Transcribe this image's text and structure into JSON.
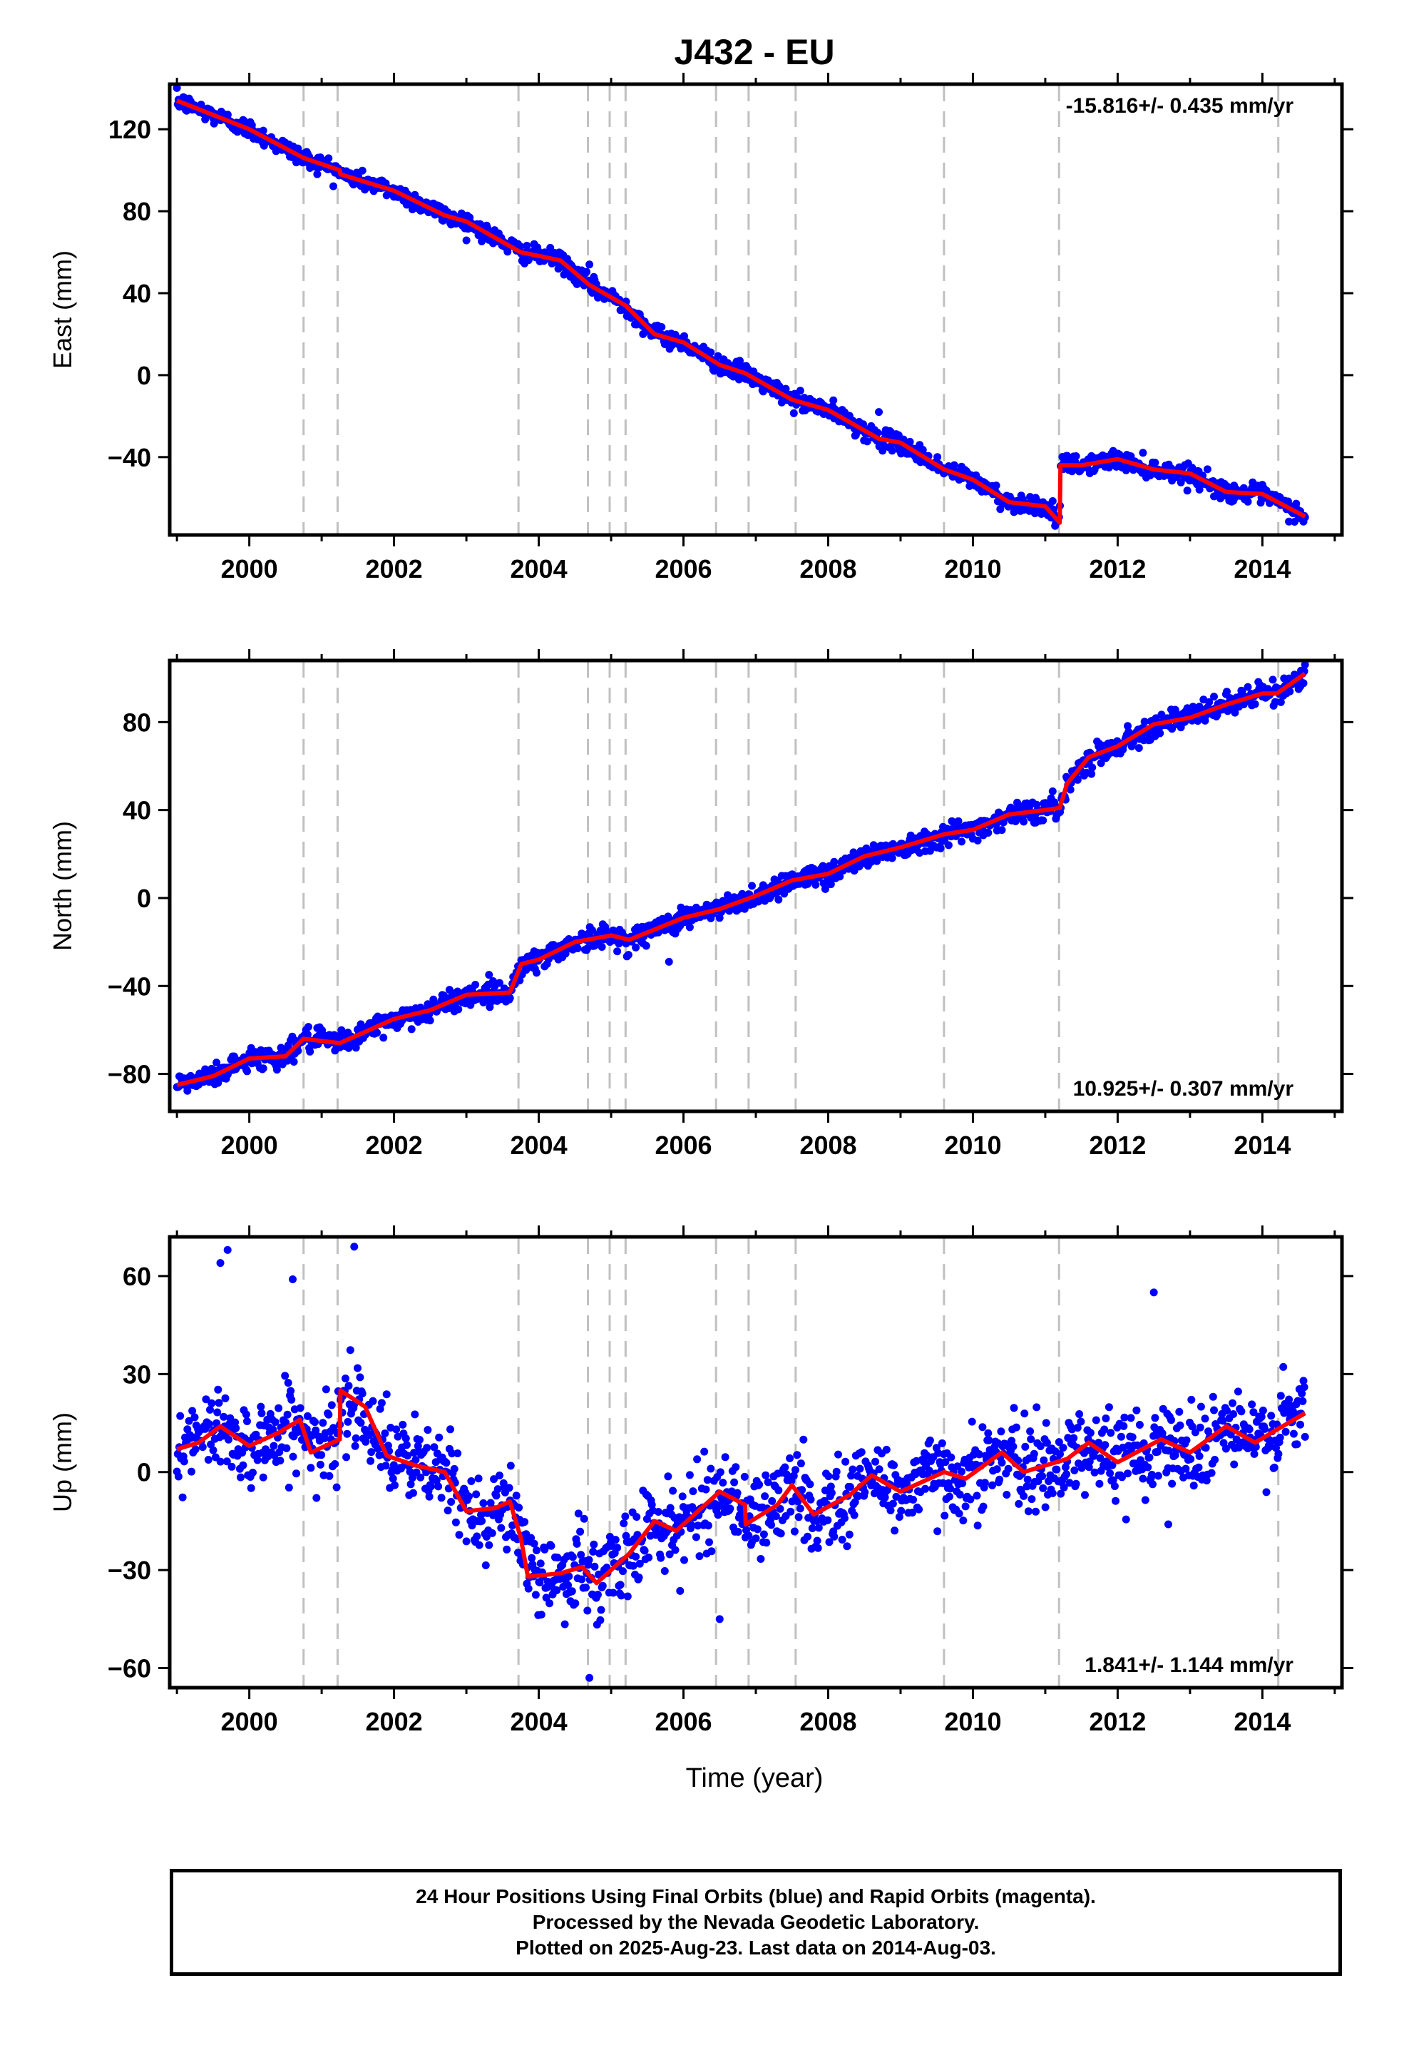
{
  "title": "J432 - EU",
  "xlabel": "Time (year)",
  "caption": [
    "24 Hour Positions Using Final Orbits (blue) and Rapid Orbits (magenta).",
    "Processed by the Nevada Geodetic Laboratory.",
    "Plotted on 2025-Aug-23. Last data on 2014-Aug-03."
  ],
  "colors": {
    "points": "#0000ff",
    "model": "#ff0000",
    "step_lines": "#c0c0c0",
    "frame": "#000000"
  },
  "chart_data": [
    {
      "type": "scatter",
      "component": "East",
      "ylabel": "East (mm)",
      "rate_label": "-15.816+/- 0.435 mm/yr",
      "xlim": [
        1998.9,
        2015.1
      ],
      "ylim": [
        -78,
        142
      ],
      "xticks": [
        2000,
        2002,
        2004,
        2006,
        2008,
        2010,
        2012,
        2014
      ],
      "yticks": [
        -40,
        0,
        40,
        80,
        120
      ],
      "x_start": 1999.0,
      "x_end": 2014.59,
      "scatter_sd": 2.2,
      "outliers": [
        [
          2004.7,
          54
        ],
        [
          2008.7,
          -18
        ]
      ],
      "model": [
        [
          1999.0,
          134
        ],
        [
          2000.0,
          120
        ],
        [
          2000.75,
          106
        ],
        [
          2001.25,
          100
        ],
        [
          2001.26,
          98
        ],
        [
          2002.0,
          90
        ],
        [
          2002.7,
          78
        ],
        [
          2003.0,
          75
        ],
        [
          2003.75,
          60
        ],
        [
          2004.3,
          56
        ],
        [
          2004.7,
          44
        ],
        [
          2005.2,
          34
        ],
        [
          2005.6,
          20
        ],
        [
          2006.0,
          16
        ],
        [
          2006.5,
          5
        ],
        [
          2006.85,
          1
        ],
        [
          2007.5,
          -12
        ],
        [
          2008.0,
          -17
        ],
        [
          2008.7,
          -31
        ],
        [
          2009.0,
          -33
        ],
        [
          2009.6,
          -46
        ],
        [
          2010.0,
          -51
        ],
        [
          2010.5,
          -62
        ],
        [
          2011.0,
          -64
        ],
        [
          2011.2,
          -72
        ],
        [
          2011.21,
          -44
        ],
        [
          2011.5,
          -44
        ],
        [
          2012.0,
          -41
        ],
        [
          2012.5,
          -46
        ],
        [
          2013.0,
          -48
        ],
        [
          2013.5,
          -57
        ],
        [
          2014.0,
          -58
        ],
        [
          2014.59,
          -69
        ]
      ]
    },
    {
      "type": "scatter",
      "component": "North",
      "ylabel": "North (mm)",
      "rate_label": "10.925+/- 0.307 mm/yr",
      "xlim": [
        1998.9,
        2015.1
      ],
      "ylim": [
        -97,
        108
      ],
      "xticks": [
        2000,
        2002,
        2004,
        2006,
        2008,
        2010,
        2012,
        2014
      ],
      "yticks": [
        -80,
        -40,
        0,
        40,
        80
      ],
      "x_start": 1999.0,
      "x_end": 2014.59,
      "scatter_sd": 2.5,
      "outliers": [
        [
          2005.8,
          -29
        ]
      ],
      "model": [
        [
          1999.0,
          -85
        ],
        [
          1999.5,
          -81
        ],
        [
          2000.0,
          -73
        ],
        [
          2000.5,
          -72
        ],
        [
          2000.75,
          -64
        ],
        [
          2001.25,
          -66
        ],
        [
          2002.0,
          -55
        ],
        [
          2002.5,
          -51
        ],
        [
          2003.0,
          -44
        ],
        [
          2003.6,
          -43
        ],
        [
          2003.76,
          -30
        ],
        [
          2004.0,
          -28
        ],
        [
          2004.5,
          -20
        ],
        [
          2005.0,
          -17
        ],
        [
          2005.25,
          -19
        ],
        [
          2006.0,
          -9
        ],
        [
          2006.5,
          -5
        ],
        [
          2007.0,
          1
        ],
        [
          2007.5,
          8
        ],
        [
          2008.0,
          11
        ],
        [
          2008.5,
          19
        ],
        [
          2009.0,
          23
        ],
        [
          2009.6,
          29
        ],
        [
          2010.0,
          31
        ],
        [
          2010.5,
          38
        ],
        [
          2011.0,
          40
        ],
        [
          2011.2,
          41
        ],
        [
          2011.3,
          52
        ],
        [
          2011.6,
          64
        ],
        [
          2012.0,
          69
        ],
        [
          2012.5,
          79
        ],
        [
          2013.0,
          82
        ],
        [
          2013.5,
          88
        ],
        [
          2014.0,
          93
        ],
        [
          2014.2,
          93
        ],
        [
          2014.59,
          102
        ]
      ]
    },
    {
      "type": "scatter",
      "component": "Up",
      "ylabel": "Up (mm)",
      "rate_label": "1.841+/- 1.144 mm/yr",
      "xlim": [
        1998.9,
        2015.1
      ],
      "ylim": [
        -66,
        72
      ],
      "xticks": [
        2000,
        2002,
        2004,
        2006,
        2008,
        2010,
        2012,
        2014
      ],
      "yticks": [
        -60,
        -30,
        0,
        30,
        60
      ],
      "x_start": 1999.0,
      "x_end": 2014.59,
      "scatter_sd": 6.5,
      "outliers": [
        [
          1999.6,
          64
        ],
        [
          1999.7,
          68
        ],
        [
          2000.6,
          59
        ],
        [
          2001.45,
          69
        ],
        [
          2012.5,
          55
        ],
        [
          2012.7,
          -16
        ],
        [
          2004.7,
          -63
        ],
        [
          2006.5,
          -45
        ]
      ],
      "model": [
        [
          1999.0,
          7
        ],
        [
          1999.3,
          9
        ],
        [
          1999.6,
          14
        ],
        [
          2000.0,
          8
        ],
        [
          2000.4,
          12
        ],
        [
          2000.7,
          16
        ],
        [
          2000.85,
          6
        ],
        [
          2001.25,
          10
        ],
        [
          2001.26,
          25
        ],
        [
          2001.6,
          20
        ],
        [
          2001.9,
          5
        ],
        [
          2002.3,
          2
        ],
        [
          2002.7,
          0
        ],
        [
          2003.0,
          -12
        ],
        [
          2003.4,
          -11
        ],
        [
          2003.6,
          -9
        ],
        [
          2003.75,
          -20
        ],
        [
          2003.85,
          -32
        ],
        [
          2004.3,
          -31
        ],
        [
          2004.6,
          -29
        ],
        [
          2004.8,
          -34
        ],
        [
          2005.25,
          -25
        ],
        [
          2005.6,
          -15
        ],
        [
          2005.9,
          -18
        ],
        [
          2006.2,
          -12
        ],
        [
          2006.5,
          -6
        ],
        [
          2006.85,
          -10
        ],
        [
          2006.86,
          -16
        ],
        [
          2007.3,
          -10
        ],
        [
          2007.5,
          -4
        ],
        [
          2007.8,
          -13
        ],
        [
          2008.3,
          -7
        ],
        [
          2008.6,
          -1
        ],
        [
          2009.0,
          -6
        ],
        [
          2009.6,
          0
        ],
        [
          2009.9,
          -2
        ],
        [
          2010.4,
          6
        ],
        [
          2010.7,
          0
        ],
        [
          2011.3,
          4
        ],
        [
          2011.6,
          9
        ],
        [
          2012.0,
          3
        ],
        [
          2012.6,
          10
        ],
        [
          2013.0,
          6
        ],
        [
          2013.5,
          14
        ],
        [
          2013.9,
          9
        ],
        [
          2014.2,
          13
        ],
        [
          2014.59,
          18
        ]
      ]
    }
  ],
  "step_dates": [
    2000.75,
    2001.22,
    2003.72,
    2004.68,
    2004.98,
    2005.2,
    2006.45,
    2006.9,
    2007.55,
    2009.6,
    2011.19,
    2014.22
  ]
}
